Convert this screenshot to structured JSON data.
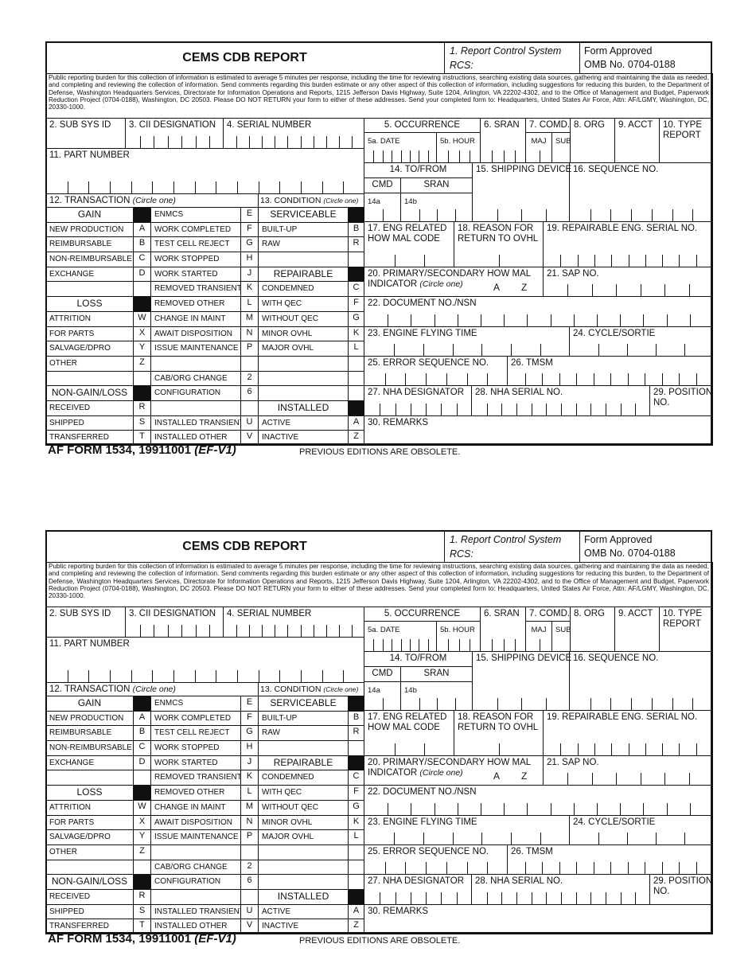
{
  "form": {
    "title": "CEMS CDB REPORT",
    "rcs_label": "1. Report Control System",
    "rcs": "RCS:",
    "approved": "Form Approved",
    "omb": "OMB No. 0704-0188",
    "burden": "Public reporting burden for this collection of information is estimated to average 5 minutes per response, including the time for reviewing instructions, searching existing data sources, gathering and maintaining the data as needed, and completing and reviewing the collection of information. Send comments regarding this burden estimate or any other aspect of this collection of information, including suggestions for reducing this burden, to the Department of Defense, Washington Headquarters Services, Directorate for Information Operations and Reports, 1215 Jefferson Davis Highway, Suite 1204, Arlington, VA 22202-4302, and to the Office of Management and Budget, Paperwork Reduction Project (0704-0188), Washington, DC 20503. Please DO NOT RETURN your form to either of these addresses. Send your completed form to: Headquarters, United States Air Force, Attn: AF/LGMY, Washington, DC, 20330-1000.",
    "fields": {
      "sub_sys_id": "2. SUB SYS ID",
      "cii": "3. CII DESIGNATION",
      "serial": "4. SERIAL NUMBER",
      "occurrence": "5. OCCURRENCE",
      "date": "5a. DATE",
      "hour": "5b. HOUR",
      "sran": "6. SRAN",
      "comd": "7. COMD.",
      "maj": "MAJ",
      "sub": "SUB",
      "org": "8. ORG",
      "acct": "9. ACCT",
      "type_report": "10. TYPE REPORT",
      "part_number": "11. PART NUMBER",
      "transaction": "12. TRANSACTION",
      "condition": "13. CONDITION",
      "circle_one": "(Circle one)",
      "to_from": "14. TO/FROM",
      "cmd": "CMD",
      "sran_sub": "SRAN",
      "f14a": "14a",
      "f14b": "14b",
      "shipping": "15. SHIPPING DEVICE",
      "sequence": "16. SEQUENCE NO.",
      "eng_related_1": "17. ENG RELATED",
      "eng_related_2": "HOW MAL CODE",
      "reason_1": "18. REASON FOR",
      "reason_2": "RETURN TO OVHL",
      "repairable_serial": "19. REPAIRABLE ENG. SERIAL NO.",
      "how_mal_1": "20. PRIMARY/SECONDARY HOW MAL",
      "how_mal_2": "INDICATOR",
      "how_mal_a": "A",
      "how_mal_z": "Z",
      "sap": "21. SAP NO.",
      "document": "22. DOCUMENT NO./NSN",
      "flying_time": "23. ENGINE FLYING TIME",
      "cycle": "24. CYCLE/SORTIE",
      "error_seq": "25. ERROR SEQUENCE NO.",
      "tmsm": "26. TMSM",
      "nha_designator": "27. NHA DESIGNATOR",
      "nha_serial": "28. NHA SERIAL NO.",
      "position_1": "29. POSITION",
      "position_2": "NO.",
      "remarks": "30. REMARKS"
    },
    "table": [
      [
        "GAIN",
        "#",
        "ENMCS",
        "E",
        "SERVICEABLE",
        "#"
      ],
      [
        "NEW PRODUCTION",
        "A",
        "WORK COMPLETED",
        "F",
        "BUILT-UP",
        "B"
      ],
      [
        "REIMBURSABLE",
        "B",
        "TEST CELL REJECT",
        "G",
        "RAW",
        "R"
      ],
      [
        "NON-REIMBURSABLE",
        "C",
        "WORK STOPPED",
        "H",
        "",
        ""
      ],
      [
        "EXCHANGE",
        "D",
        "WORK STARTED",
        "J",
        "REPAIRABLE",
        "#"
      ],
      [
        "",
        "",
        "REMOVED TRANSIENT",
        "K",
        "CONDEMNED",
        "C"
      ],
      [
        "LOSS",
        "#",
        "REMOVED OTHER",
        "L",
        "WITH QEC",
        "F"
      ],
      [
        "ATTRITION",
        "W",
        "CHANGE IN MAINT",
        "M",
        "WITHOUT QEC",
        "G"
      ],
      [
        "FOR PARTS",
        "X",
        "AWAIT DISPOSITION",
        "N",
        "MINOR OVHL",
        "K"
      ],
      [
        "SALVAGE/DPRO",
        "Y",
        "ISSUE MAINTENANCE",
        "P",
        "MAJOR OVHL",
        "L"
      ],
      [
        "OTHER",
        "Z",
        "",
        "",
        "",
        ""
      ],
      [
        "",
        "",
        "CAB/ORG CHANGE",
        "2",
        "",
        ""
      ],
      [
        "NON-GAIN/LOSS",
        "#",
        "CONFIGURATION",
        "6",
        "",
        ""
      ],
      [
        "RECEIVED",
        "R",
        "",
        "",
        "INSTALLED",
        "#"
      ],
      [
        "SHIPPED",
        "S",
        "INSTALLED TRANSIENT",
        "U",
        "ACTIVE",
        "A"
      ],
      [
        "TRANSFERRED",
        "T",
        "INSTALLED OTHER",
        "V",
        "INACTIVE",
        "Z"
      ]
    ],
    "table_header_rows": [
      0,
      6,
      12
    ],
    "table_header_rows_col3": [
      0,
      4,
      13
    ],
    "footer": {
      "form_id": "AF FORM 1534, 19911001",
      "edition": "(EF-V1)",
      "obsolete": "PREVIOUS EDITIONS ARE OBSOLETE."
    }
  }
}
